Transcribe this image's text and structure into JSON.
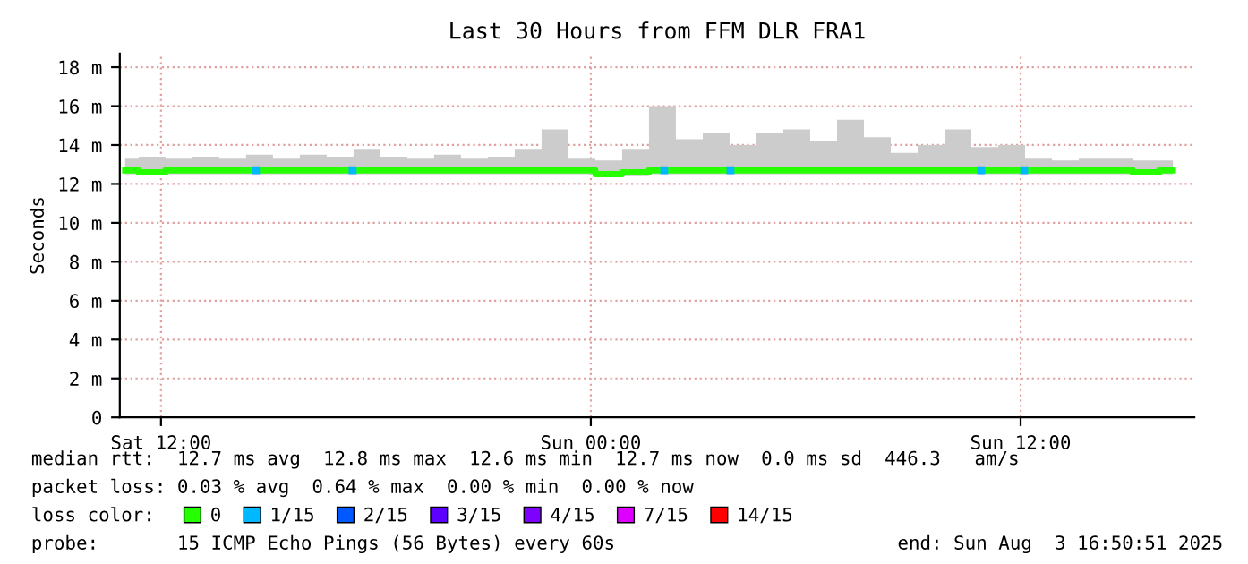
{
  "chart_data": {
    "type": "step",
    "title": "Last 30 Hours from FFM DLR FRA1",
    "ylabel": "Seconds",
    "xlim": [
      "2025-08-02T10:51",
      "2025-08-03T16:51"
    ],
    "xticks": [
      {
        "value": "2025-08-02T12:00",
        "label": "Sat 12:00"
      },
      {
        "value": "2025-08-03T00:00",
        "label": "Sun 00:00"
      },
      {
        "value": "2025-08-03T12:00",
        "label": "Sun 12:00"
      }
    ],
    "ylim": [
      0,
      18.7
    ],
    "yticks": [
      0,
      {
        "value": 2,
        "label": "2 m"
      },
      {
        "value": 4,
        "label": "4 m"
      },
      {
        "value": 6,
        "label": "6 m"
      },
      {
        "value": 8,
        "label": "8 m"
      },
      {
        "value": 10,
        "label": "10 m"
      },
      {
        "value": 12,
        "label": "12 m"
      },
      {
        "value": 14,
        "label": "14 m"
      },
      {
        "value": 16,
        "label": "16 m"
      },
      {
        "value": 18,
        "label": "18 m"
      }
    ],
    "grid": true,
    "legend": "bottom",
    "legend_title": "loss color:",
    "series": [
      {
        "name": "0",
        "color": "#26ff00",
        "x": [
          "2025-08-02T11:00",
          "2025-08-02T11:45",
          "2025-08-02T12:30",
          "2025-08-02T13:15",
          "2025-08-02T14:00",
          "2025-08-02T14:45",
          "2025-08-02T15:30",
          "2025-08-02T16:15",
          "2025-08-02T17:00",
          "2025-08-02T17:45",
          "2025-08-02T18:30",
          "2025-08-02T19:15",
          "2025-08-02T20:00",
          "2025-08-02T20:45",
          "2025-08-02T21:30",
          "2025-08-02T22:15",
          "2025-08-02T23:00",
          "2025-08-02T23:45",
          "2025-08-03T00:30",
          "2025-08-03T01:15",
          "2025-08-03T02:00",
          "2025-08-03T02:45",
          "2025-08-03T03:30",
          "2025-08-03T04:15",
          "2025-08-03T05:00",
          "2025-08-03T05:45",
          "2025-08-03T06:30",
          "2025-08-03T07:15",
          "2025-08-03T08:00",
          "2025-08-03T08:45",
          "2025-08-03T09:30",
          "2025-08-03T10:15",
          "2025-08-03T11:00",
          "2025-08-03T11:45",
          "2025-08-03T12:30",
          "2025-08-03T13:15",
          "2025-08-03T14:00",
          "2025-08-03T14:45",
          "2025-08-03T15:30",
          "2025-08-03T16:15"
        ],
        "values": [
          12.7,
          12.6,
          12.7,
          12.7,
          12.7,
          12.7,
          12.7,
          12.7,
          12.7,
          12.7,
          12.7,
          12.7,
          12.7,
          12.7,
          12.7,
          12.7,
          12.7,
          12.7,
          12.5,
          12.6,
          12.7,
          12.7,
          12.7,
          12.7,
          12.7,
          12.7,
          12.7,
          12.7,
          12.7,
          12.7,
          12.7,
          12.7,
          12.7,
          12.7,
          12.7,
          12.7,
          12.7,
          12.7,
          12.6,
          12.7
        ],
        "lower": [
          12.5,
          12.5,
          12.5,
          12.5,
          12.5,
          12.5,
          12.5,
          12.5,
          12.5,
          12.5,
          12.5,
          12.5,
          12.5,
          12.5,
          12.5,
          12.5,
          12.5,
          12.5,
          12.4,
          12.4,
          12.5,
          12.5,
          12.5,
          12.5,
          12.5,
          12.5,
          12.5,
          12.5,
          12.5,
          12.5,
          12.5,
          12.5,
          12.5,
          12.5,
          12.5,
          12.5,
          12.5,
          12.5,
          12.5,
          12.5
        ],
        "upper": [
          13.3,
          13.4,
          13.3,
          13.4,
          13.3,
          13.5,
          13.3,
          13.5,
          13.4,
          13.8,
          13.4,
          13.3,
          13.5,
          13.3,
          13.4,
          13.8,
          14.8,
          13.3,
          13.2,
          13.8,
          16.0,
          14.3,
          14.6,
          14.0,
          14.6,
          14.8,
          14.2,
          15.3,
          14.4,
          13.6,
          14.0,
          14.8,
          13.9,
          14.0,
          13.3,
          13.2,
          13.3,
          13.3,
          13.2,
          13.2
        ]
      },
      {
        "name": "1/15",
        "type": "scatter",
        "color": "#00b8ff",
        "x": [
          "2025-08-02T14:39",
          "2025-08-02T17:21",
          "2025-08-03T02:03",
          "2025-08-03T03:54",
          "2025-08-03T10:54",
          "2025-08-03T12:06"
        ],
        "values": [
          12.7,
          12.7,
          12.7,
          12.7,
          12.7,
          12.7
        ]
      },
      {
        "name": "2/15",
        "type": "scatter",
        "color": "#0059ff"
      },
      {
        "name": "3/15",
        "type": "scatter",
        "color": "#5e00ff"
      },
      {
        "name": "4/15",
        "type": "scatter",
        "color": "#7e00ff"
      },
      {
        "name": "7/15",
        "type": "scatter",
        "color": "#dd00ff"
      },
      {
        "name": "14/15",
        "type": "scatter",
        "color": "#ff0000"
      }
    ],
    "annotations": [
      "median rtt:  12.7 ms avg  12.8 ms max  12.6 ms min  12.7 ms now  0.0 ms sd  446.3   am/s",
      "packet loss: 0.03 % avg  0.64 % max  0.00 % min  0.00 % now",
      "probe:       15 ICMP Echo Pings (56 Bytes) every 60s",
      "end: Sun Aug  3 16:50:51 2025"
    ]
  }
}
